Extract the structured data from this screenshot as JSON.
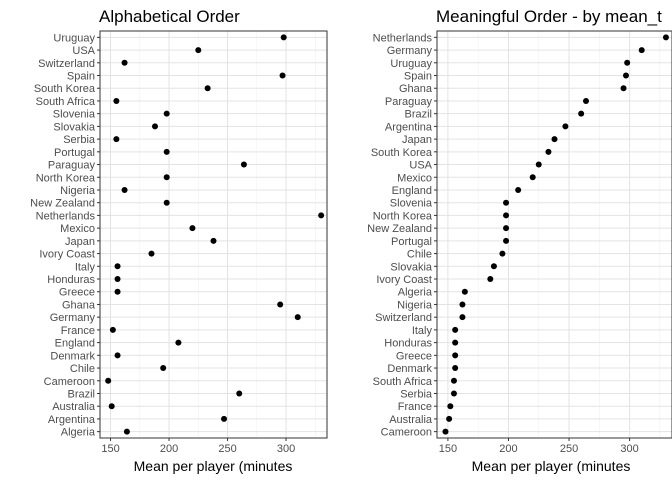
{
  "chart_data": [
    {
      "type": "scatter",
      "title": "Alphabetical Order",
      "xlabel": "Mean per player (minutes",
      "ylabel": "",
      "xlim": [
        141,
        335
      ],
      "xticks": [
        150,
        200,
        250,
        300
      ],
      "grid": true,
      "categories": [
        "Uruguay",
        "USA",
        "Switzerland",
        "Spain",
        "South Korea",
        "South Africa",
        "Slovenia",
        "Slovakia",
        "Serbia",
        "Portugal",
        "Paraguay",
        "North Korea",
        "Nigeria",
        "New Zealand",
        "Netherlands",
        "Mexico",
        "Japan",
        "Ivory Coast",
        "Italy",
        "Honduras",
        "Greece",
        "Ghana",
        "Germany",
        "France",
        "England",
        "Denmark",
        "Chile",
        "Cameroon",
        "Brazil",
        "Australia",
        "Argentina",
        "Algeria"
      ],
      "values": [
        298,
        225,
        162,
        297,
        233,
        155,
        198,
        188,
        155,
        198,
        264,
        198,
        162,
        198,
        330,
        220,
        238,
        185,
        156,
        156,
        156,
        295,
        310,
        152,
        208,
        156,
        195,
        148,
        260,
        151,
        247,
        164
      ]
    },
    {
      "type": "scatter",
      "title": "Meaningful Order - by mean_t",
      "xlabel": "Mean per player (minutes",
      "ylabel": "",
      "xlim": [
        141,
        335
      ],
      "xticks": [
        150,
        200,
        250,
        300
      ],
      "grid": true,
      "categories": [
        "Netherlands",
        "Germany",
        "Uruguay",
        "Spain",
        "Ghana",
        "Paraguay",
        "Brazil",
        "Argentina",
        "Japan",
        "South Korea",
        "USA",
        "Mexico",
        "England",
        "Slovenia",
        "North Korea",
        "New Zealand",
        "Portugal",
        "Chile",
        "Slovakia",
        "Ivory Coast",
        "Algeria",
        "Nigeria",
        "Switzerland",
        "Italy",
        "Honduras",
        "Greece",
        "Denmark",
        "South Africa",
        "Serbia",
        "France",
        "Australia",
        "Cameroon"
      ],
      "values": [
        330,
        310,
        298,
        297,
        295,
        264,
        260,
        247,
        238,
        233,
        225,
        220,
        208,
        198,
        198,
        198,
        198,
        195,
        188,
        185,
        164,
        162,
        162,
        156,
        156,
        156,
        156,
        155,
        155,
        152,
        151,
        148
      ]
    }
  ]
}
